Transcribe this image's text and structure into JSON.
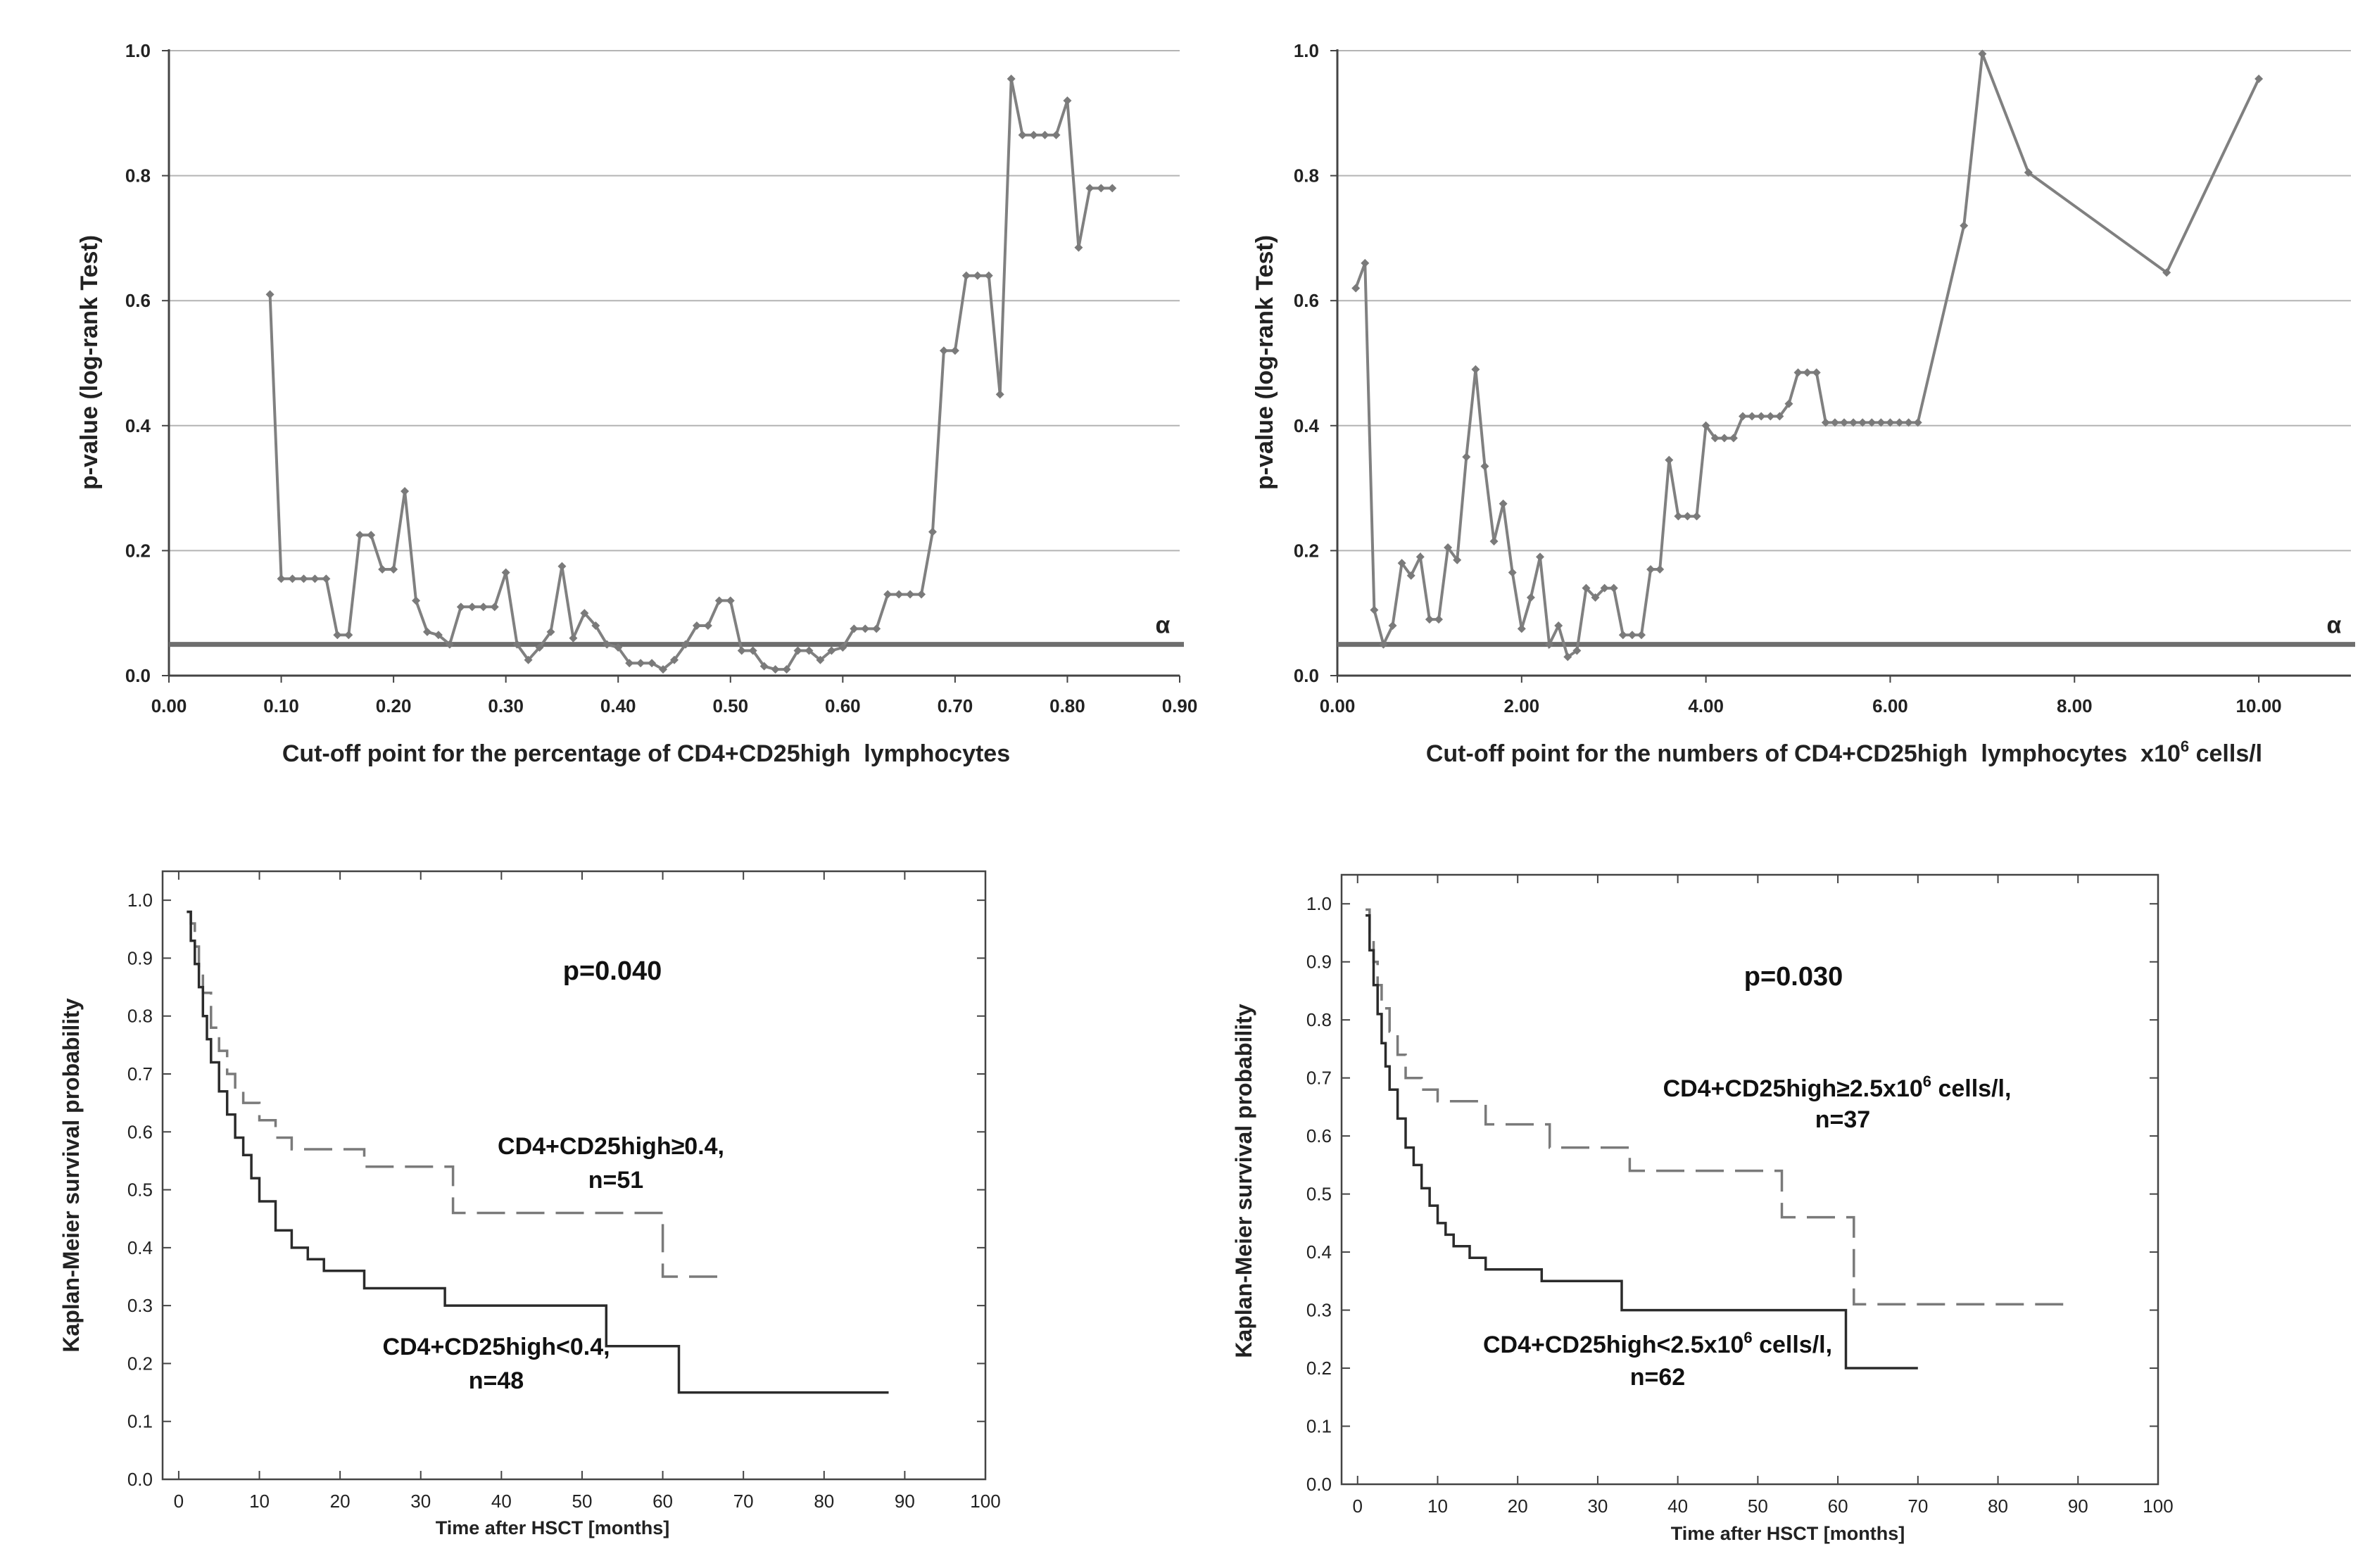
{
  "chart_data": [
    {
      "id": "top-left",
      "type": "line",
      "title": "",
      "xlabel": "Cut-off point for the percentage of CD4+CD25high  lymphocytes",
      "ylabel": "p-value (log-rank Test)",
      "xlim": [
        0,
        0.9
      ],
      "ylim": [
        0,
        1.0
      ],
      "xticks": [
        "0.00",
        "0.10",
        "0.20",
        "0.30",
        "0.40",
        "0.50",
        "0.60",
        "0.70",
        "0.80",
        "0.90"
      ],
      "yticks": [
        "0.0",
        "0.2",
        "0.4",
        "0.6",
        "0.8",
        "1.0"
      ],
      "grid": true,
      "alpha_value": 0.05,
      "alpha_label": "α",
      "line_color": "#808080",
      "series": [
        {
          "name": "p-value",
          "x": [
            0.09,
            0.1,
            0.11,
            0.12,
            0.13,
            0.14,
            0.15,
            0.16,
            0.17,
            0.18,
            0.19,
            0.2,
            0.21,
            0.22,
            0.23,
            0.24,
            0.25,
            0.26,
            0.27,
            0.28,
            0.29,
            0.3,
            0.31,
            0.32,
            0.33,
            0.34,
            0.35,
            0.36,
            0.37,
            0.38,
            0.39,
            0.4,
            0.41,
            0.42,
            0.43,
            0.44,
            0.45,
            0.46,
            0.47,
            0.48,
            0.49,
            0.5,
            0.51,
            0.52,
            0.53,
            0.54,
            0.55,
            0.56,
            0.57,
            0.58,
            0.59,
            0.6,
            0.61,
            0.62,
            0.63,
            0.64,
            0.65,
            0.66,
            0.67,
            0.68,
            0.69,
            0.7,
            0.71,
            0.72,
            0.73,
            0.74,
            0.75,
            0.76,
            0.77,
            0.78,
            0.79,
            0.8,
            0.81,
            0.82,
            0.83,
            0.84
          ],
          "y": [
            0.61,
            0.155,
            0.155,
            0.155,
            0.155,
            0.155,
            0.065,
            0.065,
            0.225,
            0.225,
            0.17,
            0.17,
            0.295,
            0.12,
            0.07,
            0.065,
            0.05,
            0.11,
            0.11,
            0.11,
            0.11,
            0.165,
            0.05,
            0.025,
            0.045,
            0.07,
            0.175,
            0.06,
            0.1,
            0.08,
            0.05,
            0.045,
            0.02,
            0.02,
            0.02,
            0.01,
            0.025,
            0.05,
            0.08,
            0.08,
            0.12,
            0.12,
            0.04,
            0.04,
            0.015,
            0.01,
            0.01,
            0.04,
            0.04,
            0.025,
            0.04,
            0.045,
            0.075,
            0.075,
            0.075,
            0.13,
            0.13,
            0.13,
            0.13,
            0.23,
            0.52,
            0.52,
            0.64,
            0.64,
            0.64,
            0.45,
            0.955,
            0.865,
            0.865,
            0.865,
            0.865,
            0.92,
            0.685,
            0.78,
            0.78,
            0.78
          ]
        }
      ]
    },
    {
      "id": "top-right",
      "type": "line",
      "title": "",
      "xlabel": "Cut-off point for the numbers of CD4+CD25high  lymphocytes  x10",
      "xlabel_sup": "6",
      "xlabel_tail": " cells/l",
      "ylabel": "p-value (log-rank Test)",
      "xlim": [
        0,
        11.0
      ],
      "ylim": [
        0,
        1.0
      ],
      "xticks": [
        "0.00",
        "2.00",
        "4.00",
        "6.00",
        "8.00",
        "10.00"
      ],
      "yticks": [
        "0.0",
        "0.2",
        "0.4",
        "0.6",
        "0.8",
        "1.0"
      ],
      "grid": true,
      "alpha_value": 0.05,
      "alpha_label": "α",
      "line_color": "#808080",
      "series": [
        {
          "name": "p-value",
          "x": [
            0.2,
            0.3,
            0.4,
            0.5,
            0.6,
            0.7,
            0.8,
            0.9,
            1.0,
            1.1,
            1.2,
            1.3,
            1.4,
            1.5,
            1.6,
            1.7,
            1.8,
            1.9,
            2.0,
            2.1,
            2.2,
            2.3,
            2.4,
            2.5,
            2.6,
            2.7,
            2.8,
            2.9,
            3.0,
            3.1,
            3.2,
            3.3,
            3.4,
            3.5,
            3.6,
            3.7,
            3.8,
            3.9,
            4.0,
            4.1,
            4.2,
            4.3,
            4.4,
            4.5,
            4.6,
            4.7,
            4.8,
            4.9,
            5.0,
            5.1,
            5.2,
            5.3,
            5.4,
            5.5,
            5.6,
            5.7,
            5.8,
            5.9,
            6.0,
            6.1,
            6.2,
            6.3,
            6.8,
            7.0,
            7.5,
            9.0,
            10.0
          ],
          "y": [
            0.62,
            0.66,
            0.105,
            0.05,
            0.08,
            0.18,
            0.16,
            0.19,
            0.09,
            0.09,
            0.205,
            0.185,
            0.35,
            0.49,
            0.335,
            0.215,
            0.275,
            0.165,
            0.075,
            0.125,
            0.19,
            0.05,
            0.08,
            0.03,
            0.04,
            0.14,
            0.125,
            0.14,
            0.14,
            0.065,
            0.065,
            0.065,
            0.17,
            0.17,
            0.345,
            0.255,
            0.255,
            0.255,
            0.4,
            0.38,
            0.38,
            0.38,
            0.415,
            0.415,
            0.415,
            0.415,
            0.415,
            0.435,
            0.485,
            0.485,
            0.485,
            0.405,
            0.405,
            0.405,
            0.405,
            0.405,
            0.405,
            0.405,
            0.405,
            0.405,
            0.405,
            0.405,
            0.72,
            0.995,
            0.805,
            0.645,
            0.955
          ]
        }
      ]
    },
    {
      "id": "bottom-left",
      "type": "line",
      "title": "",
      "xlabel": "Time after HSCT [months]",
      "ylabel": "Kaplan-Meier survival probability",
      "xlim": [
        -2,
        100
      ],
      "ylim": [
        0,
        1.05
      ],
      "xticks": [
        "0",
        "10",
        "20",
        "30",
        "40",
        "50",
        "60",
        "70",
        "80",
        "90",
        "100"
      ],
      "yticks": [
        "0.0",
        "0.1",
        "0.2",
        "0.3",
        "0.4",
        "0.5",
        "0.6",
        "0.7",
        "0.8",
        "0.9",
        "1.0"
      ],
      "grid": false,
      "p_value_label": "p=0.040",
      "series": [
        {
          "name": "CD4+CD25high≥0.4,",
          "n_label": "n=51",
          "style": "dashed",
          "color": "#7a7a7a",
          "x": [
            1,
            1.5,
            2,
            2.5,
            3,
            4,
            5,
            6,
            7,
            8,
            10,
            12,
            14,
            18,
            23,
            34,
            42,
            60,
            61,
            67
          ],
          "y": [
            0.98,
            0.96,
            0.92,
            0.88,
            0.84,
            0.78,
            0.74,
            0.7,
            0.67,
            0.65,
            0.62,
            0.59,
            0.57,
            0.57,
            0.54,
            0.46,
            0.46,
            0.35,
            0.35,
            0.35
          ]
        },
        {
          "name": "CD4+CD25high<0.4,",
          "n_label": "n=48",
          "style": "solid",
          "color": "#2b2b2b",
          "x": [
            1,
            1.5,
            2,
            2.5,
            3,
            3.5,
            4,
            5,
            6,
            7,
            8,
            9,
            10,
            12,
            14,
            16,
            18,
            23,
            33,
            45,
            53,
            62,
            88
          ],
          "y": [
            0.98,
            0.93,
            0.89,
            0.85,
            0.8,
            0.76,
            0.72,
            0.67,
            0.63,
            0.59,
            0.56,
            0.52,
            0.48,
            0.43,
            0.4,
            0.38,
            0.36,
            0.33,
            0.3,
            0.3,
            0.23,
            0.15,
            0.15
          ]
        }
      ]
    },
    {
      "id": "bottom-right",
      "type": "line",
      "title": "",
      "xlabel": "Time after HSCT [months]",
      "ylabel": "Kaplan-Meier survival probability",
      "xlim": [
        -2,
        100
      ],
      "ylim": [
        0,
        1.05
      ],
      "xticks": [
        "0",
        "10",
        "20",
        "30",
        "40",
        "50",
        "60",
        "70",
        "80",
        "90",
        "100"
      ],
      "yticks": [
        "0.0",
        "0.1",
        "0.2",
        "0.3",
        "0.4",
        "0.5",
        "0.6",
        "0.7",
        "0.8",
        "0.9",
        "1.0"
      ],
      "grid": false,
      "p_value_label": "p=0.030",
      "series": [
        {
          "name_main": "CD4+CD25high≥2.5x10",
          "name_sup": "6",
          "name_tail": " cells/l,",
          "n_label": "n=37",
          "style": "dashed",
          "color": "#7a7a7a",
          "x": [
            1,
            1.5,
            2,
            2.5,
            3,
            4,
            5,
            6,
            8,
            10,
            16,
            24,
            34,
            44,
            53,
            62,
            88
          ],
          "y": [
            0.99,
            0.95,
            0.9,
            0.86,
            0.82,
            0.78,
            0.74,
            0.7,
            0.68,
            0.66,
            0.62,
            0.58,
            0.54,
            0.54,
            0.46,
            0.31,
            0.3
          ]
        },
        {
          "name_main": "CD4+CD25high<2.5x10",
          "name_sup": "6",
          "name_tail": " cells/l,",
          "n_label": "n=62",
          "style": "solid",
          "color": "#2b2b2b",
          "x": [
            1,
            1.5,
            2,
            2.5,
            3,
            3.5,
            4,
            5,
            6,
            7,
            8,
            9,
            10,
            11,
            12,
            14,
            16,
            18,
            23,
            30,
            33,
            40,
            55,
            60,
            61,
            70
          ],
          "y": [
            0.98,
            0.92,
            0.86,
            0.81,
            0.76,
            0.72,
            0.68,
            0.63,
            0.58,
            0.55,
            0.51,
            0.48,
            0.45,
            0.43,
            0.41,
            0.39,
            0.37,
            0.37,
            0.35,
            0.35,
            0.3,
            0.3,
            0.3,
            0.3,
            0.2,
            0.2
          ]
        }
      ]
    }
  ]
}
